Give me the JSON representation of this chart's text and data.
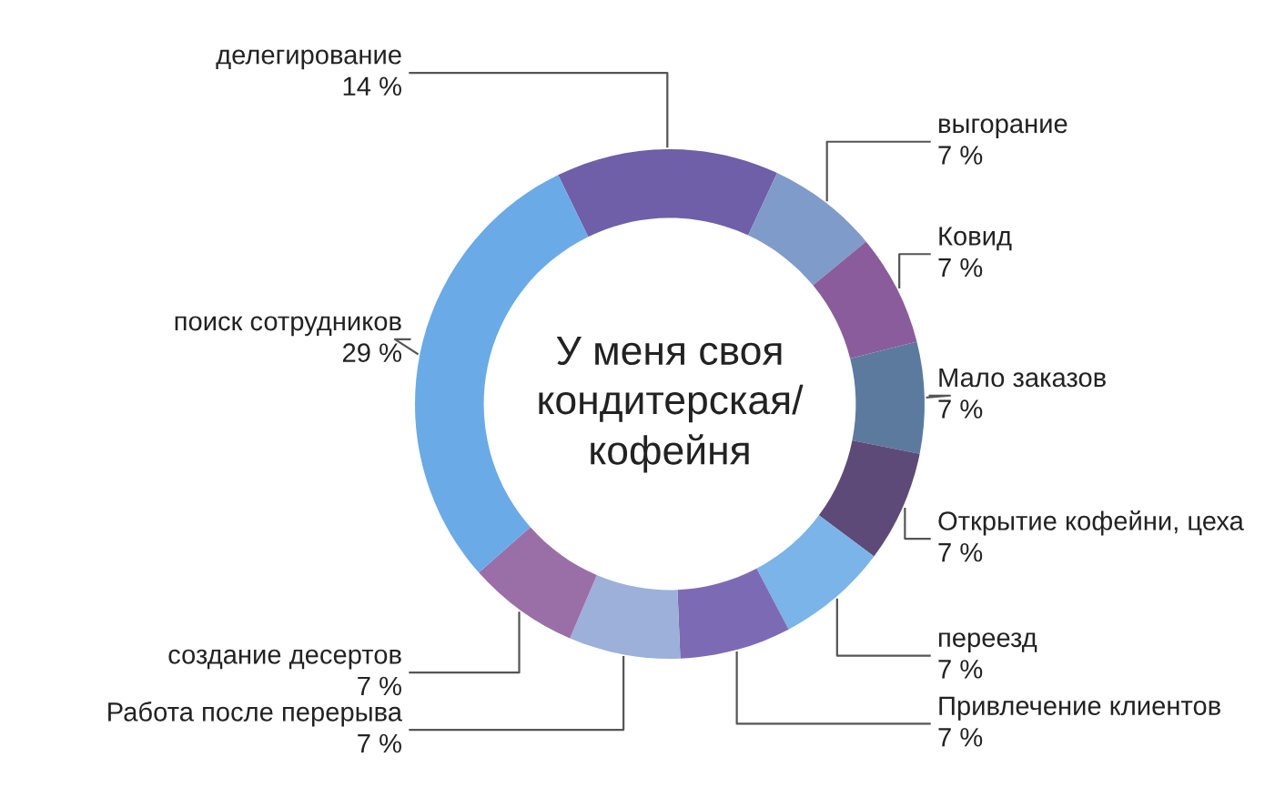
{
  "chart_data": {
    "type": "donut",
    "annotations": [
      "У меня своя\nкондитерская/\nкофейня"
    ],
    "categories": [
      "делегирование",
      "выгорание",
      "Ковид",
      "Мало заказов",
      "Открытие кофейни, цеха",
      "переезд",
      "Привлечение клиентов",
      "Работа после перерыва",
      "создание десертов",
      "поиск сотрудников"
    ],
    "values": [
      14,
      7,
      7,
      7,
      7,
      7,
      7,
      7,
      7,
      29
    ],
    "value_labels": [
      "14 %",
      "7 %",
      "7 %",
      "7 %",
      "7 %",
      "7 %",
      "7 %",
      "7 %",
      "7 %",
      "29 %"
    ],
    "colors": [
      "#6e5fa8",
      "#7f9bc9",
      "#8a5c9c",
      "#5b7a9e",
      "#5e4a78",
      "#7ab4e8",
      "#7c6bb4",
      "#9cb0da",
      "#9a6fa8",
      "#6aaae6"
    ],
    "legend": false
  }
}
